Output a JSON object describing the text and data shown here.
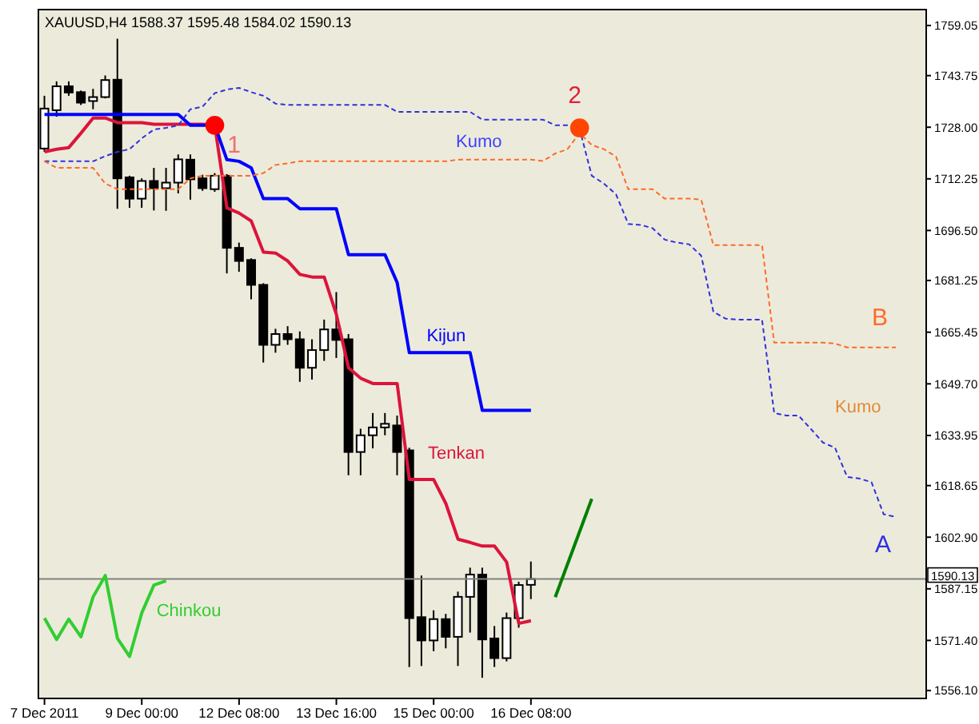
{
  "chart_data": {
    "type": "candlestick",
    "title": "XAUUSD,H4  1588.37 1595.48 1584.02 1590.13",
    "categories": [
      "7 Dec 2011",
      null,
      null,
      null,
      null,
      null,
      null,
      null,
      "9 Dec 00:00",
      null,
      null,
      null,
      null,
      null,
      null,
      null,
      "12 Dec 08:00",
      null,
      null,
      null,
      null,
      null,
      null,
      null,
      "13 Dec 16:00",
      null,
      null,
      null,
      null,
      null,
      null,
      null,
      "15 Dec 00:00",
      null,
      null,
      null,
      null,
      null,
      null,
      null,
      "16 Dec 08:00",
      null,
      null,
      null,
      null,
      null,
      null,
      null,
      null,
      null,
      null,
      null,
      null,
      null,
      null,
      null,
      null,
      null,
      null,
      null,
      null,
      null,
      null,
      null,
      null,
      null,
      null,
      null,
      null,
      null,
      null,
      null,
      null
    ],
    "ohlc": [
      [
        1721.5,
        1737.6,
        1720.5,
        1733.7
      ],
      [
        1733.2,
        1742.0,
        1731.2,
        1740.5
      ],
      [
        1740.5,
        1742.0,
        1737.6,
        1738.6
      ],
      [
        1738.7,
        1739.2,
        1734.8,
        1735.5
      ],
      [
        1736.0,
        1739.7,
        1733.5,
        1737.2
      ],
      [
        1737.2,
        1743.8,
        1736.8,
        1742.4
      ],
      [
        1742.5,
        1755.0,
        1703.1,
        1712.4
      ],
      [
        1712.7,
        1713.2,
        1703.4,
        1706.2
      ],
      [
        1706.2,
        1712.4,
        1703.4,
        1711.6
      ],
      [
        1711.6,
        1715.6,
        1702.6,
        1709.4
      ],
      [
        1709.4,
        1715.6,
        1702.5,
        1711.1
      ],
      [
        1711.1,
        1719.7,
        1707.8,
        1718.2
      ],
      [
        1718.1,
        1719.7,
        1705.9,
        1712.1
      ],
      [
        1712.4,
        1713.5,
        1708.6,
        1709.4
      ],
      [
        1709.1,
        1714.0,
        1708.3,
        1713.2
      ],
      [
        1713.2,
        1713.7,
        1683.4,
        1691.2
      ],
      [
        1691.2,
        1692.8,
        1683.9,
        1687.2
      ],
      [
        1687.5,
        1688.0,
        1675.5,
        1679.9
      ],
      [
        1679.9,
        1680.4,
        1656.2,
        1661.6
      ],
      [
        1661.6,
        1666.5,
        1659.2,
        1664.9
      ],
      [
        1664.9,
        1667.3,
        1661.6,
        1663.3
      ],
      [
        1663.3,
        1665.7,
        1650.3,
        1654.6
      ],
      [
        1654.6,
        1663.3,
        1651.0,
        1660.0
      ],
      [
        1660.0,
        1669.3,
        1656.7,
        1666.3
      ],
      [
        1666.3,
        1677.7,
        1657.6,
        1663.1
      ],
      [
        1663.3,
        1664.9,
        1621.8,
        1628.9
      ],
      [
        1628.9,
        1636.0,
        1621.8,
        1634.0
      ],
      [
        1634.0,
        1640.8,
        1630.0,
        1636.4
      ],
      [
        1636.4,
        1640.8,
        1634.0,
        1637.5
      ],
      [
        1637.0,
        1640.0,
        1621.8,
        1628.9
      ],
      [
        1629.4,
        1630.2,
        1563.3,
        1578.2
      ],
      [
        1578.5,
        1591.2,
        1563.6,
        1571.4
      ],
      [
        1571.4,
        1580.6,
        1568.1,
        1577.9
      ],
      [
        1577.9,
        1579.5,
        1569.0,
        1572.5
      ],
      [
        1572.5,
        1586.3,
        1563.6,
        1584.7
      ],
      [
        1584.7,
        1593.6,
        1573.8,
        1591.5
      ],
      [
        1591.5,
        1593.6,
        1560.0,
        1571.7
      ],
      [
        1572.0,
        1575.8,
        1563.3,
        1566.0
      ],
      [
        1566.0,
        1579.9,
        1565.0,
        1578.2
      ],
      [
        1578.2,
        1589.3,
        1575.3,
        1588.3
      ],
      [
        1588.37,
        1595.48,
        1584.02,
        1590.13
      ],
      null,
      null,
      null,
      null,
      null,
      null,
      null,
      null,
      null,
      null,
      null,
      null,
      null,
      null,
      null,
      null,
      null,
      null,
      null,
      null,
      null,
      null,
      null,
      null,
      null,
      null,
      null,
      null,
      null,
      null,
      null,
      null
    ],
    "series": [
      {
        "name": "Tenkan",
        "type": "line",
        "color": "#dc143c",
        "line_style": "solid",
        "values": [
          1720.5,
          1721.3,
          1721.8,
          1726.2,
          1730.8,
          1730.8,
          1729.4,
          1729.4,
          1729.4,
          1728.9,
          1728.9,
          1728.9,
          1728.9,
          1728.9,
          1728.6,
          1703.4,
          1701.8,
          1699.4,
          1689.9,
          1689.6,
          1687.2,
          1683.1,
          1682.3,
          1682.3,
          1670.9,
          1654.6,
          1651.4,
          1649.8,
          1649.8,
          1649.8,
          1620.5,
          1620.5,
          1620.5,
          1613.2,
          1602.3,
          1601.3,
          1600.2,
          1600.2,
          1595.3,
          1576.6,
          1577.4,
          null,
          null,
          null,
          null,
          null,
          null,
          null,
          null,
          null,
          null,
          null,
          null,
          null,
          null,
          null,
          null,
          null,
          null,
          null,
          null,
          null,
          null,
          null,
          null,
          null,
          null,
          null,
          null,
          null,
          null,
          null,
          null
        ]
      },
      {
        "name": "Kijun",
        "type": "line",
        "color": "#0000ff",
        "line_style": "solid",
        "values": [
          1731.9,
          1731.9,
          1731.9,
          1731.9,
          1731.9,
          1731.9,
          1731.9,
          1731.9,
          1731.9,
          1731.9,
          1731.9,
          1731.9,
          1728.6,
          1728.6,
          1728.6,
          1718.1,
          1717.6,
          1715.6,
          1706.2,
          1706.2,
          1706.2,
          1703.1,
          1703.1,
          1703.1,
          1703.1,
          1689.1,
          1689.1,
          1689.1,
          1689.1,
          1680.6,
          1659.2,
          1659.2,
          1659.2,
          1659.2,
          1659.2,
          1659.2,
          1641.6,
          1641.6,
          1641.6,
          1641.6,
          1641.6,
          null,
          null,
          null,
          null,
          null,
          null,
          null,
          null,
          null,
          null,
          null,
          null,
          null,
          null,
          null,
          null,
          null,
          null,
          null,
          null,
          null,
          null,
          null,
          null,
          null,
          null,
          null,
          null,
          null,
          null,
          null,
          null
        ]
      },
      {
        "name": "Chinkou",
        "type": "line",
        "color": "#32cd32",
        "line_style": "solid",
        "values": [
          1578.2,
          1571.7,
          1577.9,
          1572.5,
          1584.7,
          1591.2,
          1572.0,
          1566.5,
          1579.8,
          1588.3,
          1589.6,
          null,
          null,
          null,
          null,
          null,
          null,
          null,
          null,
          null,
          null,
          null,
          null,
          null,
          null,
          null,
          null,
          null,
          null,
          null,
          null,
          null,
          null,
          null,
          null,
          null,
          null,
          null,
          null,
          null,
          null,
          null,
          null,
          null,
          null,
          null,
          null,
          null,
          null,
          null,
          null,
          null,
          null,
          null,
          null,
          null,
          null,
          null,
          null,
          null,
          null,
          null,
          null,
          null,
          null,
          null,
          null,
          null,
          null,
          null,
          null,
          null,
          null
        ]
      },
      {
        "name": "A",
        "type": "line",
        "color": "#3030e0",
        "line_style": "dashed",
        "values": [
          1717.6,
          1717.6,
          1717.6,
          1717.6,
          1717.6,
          1719.2,
          1720.5,
          1721.3,
          1724.6,
          1727.3,
          1727.8,
          1728.6,
          1733.5,
          1734.3,
          1738.4,
          1739.5,
          1740.0,
          1738.7,
          1737.6,
          1735.2,
          1734.8,
          1734.8,
          1734.8,
          1734.8,
          1734.8,
          1734.8,
          1734.8,
          1734.8,
          1734.8,
          1732.7,
          1732.7,
          1732.7,
          1732.7,
          1732.7,
          1732.7,
          1732.7,
          1730.3,
          1730.3,
          1730.3,
          1730.3,
          1730.3,
          1730.3,
          1728.6,
          1728.6,
          1727.5,
          1713.2,
          1710.8,
          1707.5,
          1698.5,
          1698.2,
          1697.2,
          1693.7,
          1692.8,
          1692.3,
          1688.8,
          1671.7,
          1669.6,
          1669.3,
          1669.3,
          1669.3,
          1640.8,
          1640.0,
          1640.0,
          1636.0,
          1631.8,
          1630.2,
          1621.3,
          1620.8,
          1619.7,
          1609.9,
          1609.1,
          null,
          null
        ]
      },
      {
        "name": "B",
        "type": "line",
        "color": "#ff6a2a",
        "line_style": "dashed",
        "values": [
          1717.6,
          1715.6,
          1715.6,
          1715.6,
          1715.6,
          1710.8,
          1709.1,
          1709.1,
          1709.1,
          1709.1,
          1709.1,
          1709.1,
          1712.4,
          1713.2,
          1713.2,
          1713.2,
          1713.2,
          1713.2,
          1714.0,
          1716.5,
          1717.0,
          1717.6,
          1717.6,
          1717.6,
          1717.6,
          1717.6,
          1717.6,
          1717.6,
          1717.6,
          1717.6,
          1717.6,
          1717.6,
          1717.6,
          1717.6,
          1718.1,
          1718.1,
          1718.1,
          1718.1,
          1718.1,
          1718.1,
          1718.1,
          1717.7,
          1720.0,
          1721.3,
          1726.2,
          1722.6,
          1721.3,
          1719.0,
          1709.1,
          1709.1,
          1709.1,
          1706.2,
          1706.2,
          1706.2,
          1705.9,
          1692.0,
          1692.0,
          1692.0,
          1692.0,
          1692.0,
          1662.3,
          1662.3,
          1662.3,
          1662.3,
          1662.3,
          1662.0,
          1660.8,
          1660.8,
          1660.8,
          1660.8,
          1660.8,
          null,
          null
        ]
      },
      {
        "type": "scatter",
        "marker": "circle",
        "values": [
          null,
          null,
          null,
          null,
          null,
          null,
          null,
          null,
          null,
          null,
          null,
          null,
          null,
          null,
          1728.6,
          null,
          null,
          null,
          null,
          null,
          null,
          null,
          null,
          null,
          null,
          null,
          null,
          null,
          null,
          null,
          null,
          null,
          null,
          null,
          null,
          null,
          null,
          null,
          null,
          null,
          null,
          null,
          null,
          null,
          1727.8,
          null,
          null,
          null,
          null,
          null,
          null,
          null,
          null,
          null,
          null,
          null,
          null,
          null,
          null,
          null,
          null,
          null,
          null,
          null,
          null,
          null,
          null,
          null,
          null,
          null,
          null,
          null,
          null
        ],
        "colors": [
          null,
          null,
          null,
          null,
          null,
          null,
          null,
          null,
          null,
          null,
          null,
          null,
          null,
          null,
          "#ff0000",
          null,
          null,
          null,
          null,
          null,
          null,
          null,
          null,
          null,
          null,
          null,
          null,
          null,
          null,
          null,
          null,
          null,
          null,
          null,
          null,
          null,
          null,
          null,
          null,
          null,
          null,
          null,
          null,
          null,
          "#ff4500",
          null,
          null,
          null,
          null,
          null,
          null,
          null,
          null,
          null,
          null,
          null,
          null,
          null,
          null,
          null,
          null,
          null,
          null,
          null,
          null,
          null,
          null,
          null,
          null,
          null,
          null,
          null,
          null
        ]
      },
      {
        "type": "line",
        "color": "#008000",
        "line_style": "solid",
        "values": [
          null,
          null,
          null,
          null,
          null,
          null,
          null,
          null,
          null,
          null,
          null,
          null,
          null,
          null,
          null,
          null,
          null,
          null,
          null,
          null,
          null,
          null,
          null,
          null,
          null,
          null,
          null,
          null,
          null,
          null,
          null,
          null,
          null,
          null,
          null,
          null,
          null,
          null,
          null,
          null,
          null,
          null,
          1584.6,
          null,
          null,
          1614.6,
          null,
          null,
          null,
          null,
          null,
          null,
          null,
          null,
          null,
          null,
          null,
          null,
          null,
          null,
          null,
          null,
          null,
          null,
          null,
          null,
          null,
          null,
          null,
          null,
          null,
          null,
          null
        ]
      }
    ],
    "marker": "none",
    "ylim": [
      1553.7,
      1763.9
    ],
    "yticks": [
      {
        "value": 1759.05,
        "label": "1759.05"
      },
      {
        "value": 1743.75,
        "label": "1743.75"
      },
      {
        "value": 1728.0,
        "label": "1728.00"
      },
      {
        "value": 1712.25,
        "label": "1712.25"
      },
      {
        "value": 1696.5,
        "label": "1696.50"
      },
      {
        "value": 1681.25,
        "label": "1681.25"
      },
      {
        "value": 1665.45,
        "label": "1665.45"
      },
      {
        "value": 1649.7,
        "label": "1649.70"
      },
      {
        "value": 1633.95,
        "label": "1633.95"
      },
      {
        "value": 1618.65,
        "label": "1618.65"
      },
      {
        "value": 1602.9,
        "label": "1602.90"
      },
      {
        "value": 1587.15,
        "label": "1587.15"
      },
      {
        "value": 1571.4,
        "label": "1571.40"
      },
      {
        "value": 1556.1,
        "label": "1556.10"
      }
    ],
    "ref_lines": [
      {
        "axis": "y",
        "value": 1590.13,
        "label": "1590.13",
        "color": "#808080"
      }
    ],
    "annotations": [
      "1",
      "2",
      "Kumo",
      "Kumo"
    ]
  }
}
